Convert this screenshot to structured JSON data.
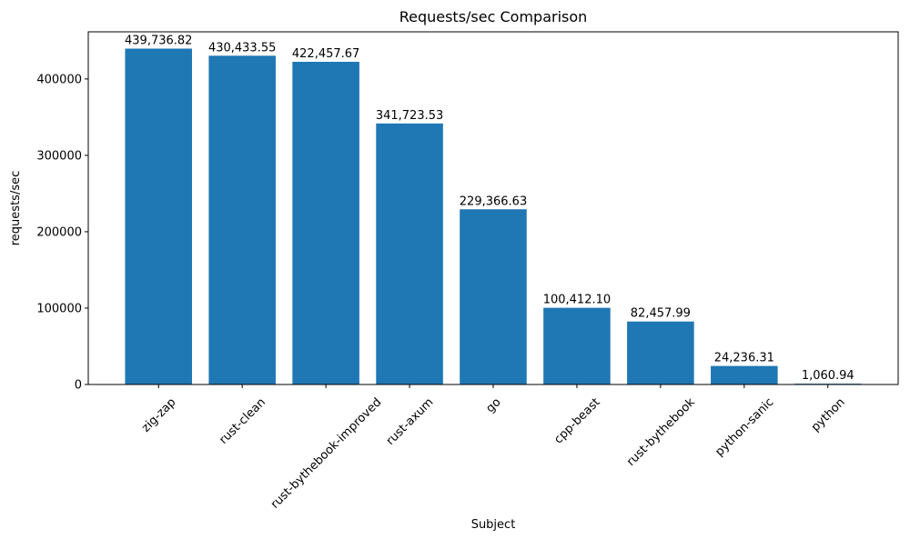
{
  "chart_data": {
    "type": "bar",
    "title": "Requests/sec Comparison",
    "xlabel": "Subject",
    "ylabel": "requests/sec",
    "categories": [
      "zig-zap",
      "rust-clean",
      "rust-bythebook-improved",
      "rust-axum",
      "go",
      "cpp-beast",
      "rust-bythebook",
      "python-sanic",
      "python"
    ],
    "values": [
      439736.82,
      430433.55,
      422457.67,
      341723.53,
      229366.63,
      100412.1,
      82457.99,
      24236.31,
      1060.94
    ],
    "value_labels": [
      "439,736.82",
      "430,433.55",
      "422,457.67",
      "341,723.53",
      "229,366.63",
      "100,412.10",
      "82,457.99",
      "24,236.31",
      "1,060.94"
    ],
    "yticks": [
      0,
      100000,
      200000,
      300000,
      400000
    ],
    "ytick_labels": [
      "0",
      "100000",
      "200000",
      "300000",
      "400000"
    ],
    "ylim": [
      0,
      461724
    ],
    "bar_color": "#1f77b4",
    "axis_color": "#000000",
    "grid": false,
    "legend": null,
    "xtick_rotation": 45,
    "bar_width_fraction": 0.8
  }
}
